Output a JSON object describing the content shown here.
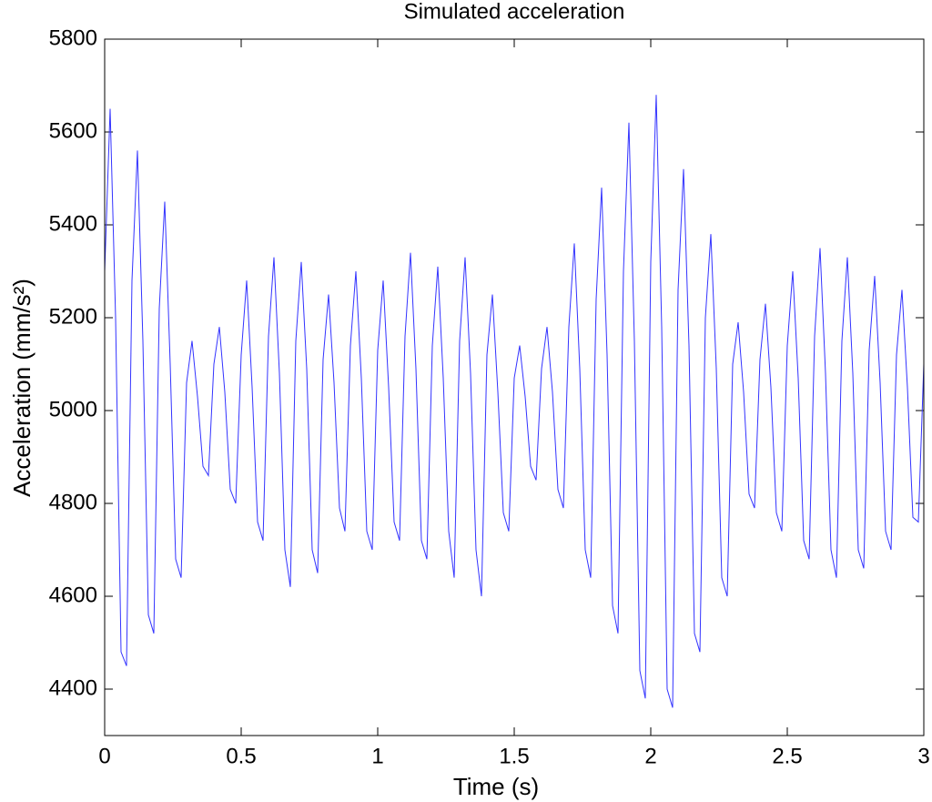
{
  "chart_data": {
    "type": "line",
    "title": "Simulated acceleration",
    "x_label": "Time (s)",
    "y_label": "Acceleration (mm/s²)",
    "x": [
      0,
      0.02,
      0.04,
      0.06,
      0.08,
      0.1,
      0.12,
      0.14,
      0.16,
      0.18,
      0.2,
      0.22,
      0.24,
      0.26,
      0.28,
      0.3,
      0.32,
      0.34,
      0.36,
      0.38,
      0.4,
      0.42,
      0.44,
      0.46,
      0.48,
      0.5,
      0.52,
      0.54,
      0.56,
      0.58,
      0.6,
      0.62,
      0.64,
      0.66,
      0.68,
      0.7,
      0.72,
      0.74,
      0.76,
      0.78,
      0.8,
      0.82,
      0.84,
      0.86,
      0.88,
      0.9,
      0.92,
      0.94,
      0.96,
      0.98,
      1,
      1.02,
      1.04,
      1.06,
      1.08,
      1.1,
      1.12,
      1.14,
      1.16,
      1.18,
      1.2,
      1.22,
      1.24,
      1.26,
      1.28,
      1.3,
      1.32,
      1.34,
      1.36,
      1.38,
      1.4,
      1.42,
      1.44,
      1.46,
      1.48,
      1.5,
      1.52,
      1.54,
      1.56,
      1.58,
      1.6,
      1.62,
      1.64,
      1.66,
      1.68,
      1.7,
      1.72,
      1.74,
      1.76,
      1.78,
      1.8,
      1.82,
      1.84,
      1.86,
      1.88,
      1.9,
      1.92,
      1.94,
      1.96,
      1.98,
      2,
      2.02,
      2.04,
      2.06,
      2.08,
      2.1,
      2.12,
      2.14,
      2.16,
      2.18,
      2.2,
      2.22,
      2.24,
      2.26,
      2.28,
      2.3,
      2.32,
      2.34,
      2.36,
      2.38,
      2.4,
      2.42,
      2.44,
      2.46,
      2.48,
      2.5,
      2.52,
      2.54,
      2.56,
      2.58,
      2.6,
      2.62,
      2.64,
      2.66,
      2.68,
      2.7,
      2.72,
      2.74,
      2.76,
      2.78,
      2.8,
      2.82,
      2.84,
      2.86,
      2.88,
      2.9,
      2.92,
      2.94,
      2.96,
      2.98,
      3
    ],
    "series": [
      {
        "color": "#3333ff",
        "values": [
          5300,
          5650,
          5200,
          4480,
          4450,
          5280,
          5560,
          5150,
          4560,
          4520,
          5220,
          5450,
          5100,
          4680,
          4640,
          5060,
          5150,
          5030,
          4880,
          4860,
          5100,
          5180,
          5040,
          4830,
          4800,
          5120,
          5280,
          5050,
          4760,
          4720,
          5160,
          5330,
          5080,
          4700,
          4620,
          5150,
          5320,
          5090,
          4700,
          4650,
          5110,
          5250,
          5060,
          4790,
          4740,
          5140,
          5300,
          5070,
          4740,
          4700,
          5130,
          5280,
          5050,
          4760,
          4720,
          5160,
          5340,
          5090,
          4720,
          4680,
          5140,
          5310,
          5070,
          4740,
          4640,
          5150,
          5330,
          5080,
          4700,
          4600,
          5120,
          5250,
          5040,
          4780,
          4740,
          5070,
          5140,
          5030,
          4880,
          4850,
          5090,
          5180,
          5040,
          4830,
          4790,
          5180,
          5360,
          5090,
          4700,
          4640,
          5240,
          5480,
          5120,
          4580,
          4520,
          5300,
          5620,
          5150,
          4440,
          4380,
          5320,
          5680,
          5180,
          4400,
          4360,
          5260,
          5520,
          5140,
          4520,
          4480,
          5200,
          5380,
          5090,
          4640,
          4600,
          5100,
          5190,
          5040,
          4820,
          4790,
          5110,
          5230,
          5050,
          4780,
          4740,
          5140,
          5300,
          5070,
          4720,
          4680,
          5160,
          5350,
          5080,
          4700,
          4640,
          5150,
          5330,
          5080,
          4700,
          4660,
          5130,
          5290,
          5060,
          4740,
          4700,
          5120,
          5260,
          5050,
          4770,
          4760,
          5100
        ]
      }
    ],
    "xlim": [
      0,
      3
    ],
    "xticks": [
      0,
      0.5,
      1,
      1.5,
      2,
      2.5,
      3
    ],
    "ylim": [
      4300,
      5800
    ],
    "yticks": [
      4400,
      4600,
      4800,
      5000,
      5200,
      5400,
      5600,
      5800
    ]
  }
}
